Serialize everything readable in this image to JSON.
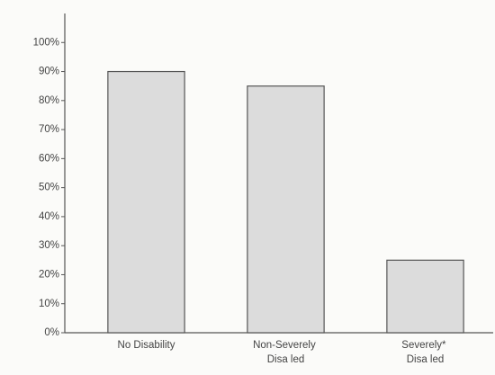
{
  "chart_data": {
    "type": "bar",
    "categories": [
      "No Disability",
      "Non-Severely Disa led",
      "Severely* Disa led"
    ],
    "values": [
      90,
      85,
      25
    ],
    "color": "#dcdcdc",
    "ylim": [
      0,
      110
    ],
    "yticks": [
      {
        "value": 0,
        "label": "0%"
      },
      {
        "value": 10,
        "label": "10%"
      },
      {
        "value": 20,
        "label": "20%"
      },
      {
        "value": 30,
        "label": "30%"
      },
      {
        "value": 40,
        "label": "40%"
      },
      {
        "value": 50,
        "label": "50%"
      },
      {
        "value": 60,
        "label": "60%"
      },
      {
        "value": 70,
        "label": "70%"
      },
      {
        "value": 80,
        "label": "80%"
      },
      {
        "value": 90,
        "label": "90%"
      },
      {
        "value": 100,
        "label": "100%"
      }
    ],
    "grid": false
  }
}
